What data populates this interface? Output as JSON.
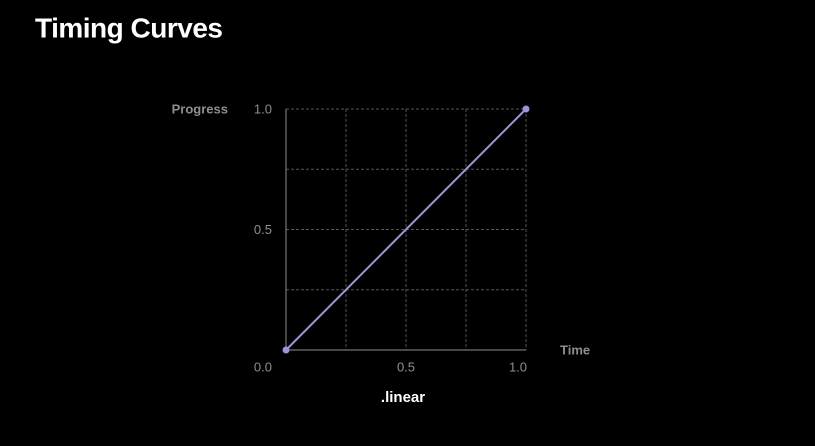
{
  "chart_data": {
    "type": "line",
    "title": "Timing Curves",
    "caption": ".linear",
    "x_label": "Time",
    "y_label": "Progress",
    "x": [
      0,
      1
    ],
    "series": [
      {
        "name": ".linear",
        "color": "#9d93d6",
        "values": [
          0,
          1
        ]
      }
    ],
    "xlim": [
      0,
      1
    ],
    "ylim": [
      0,
      1
    ],
    "xticks": [
      {
        "value": 0,
        "label": "0.0"
      },
      0.5,
      {
        "value": 1,
        "label": "1.0"
      }
    ],
    "yticks": [
      {
        "value": 0,
        "label": "0.0"
      },
      0.5,
      {
        "value": 1,
        "label": "1.0"
      }
    ],
    "grid_lines": [
      0.25,
      0.5,
      0.75,
      1
    ],
    "grid": true
  }
}
